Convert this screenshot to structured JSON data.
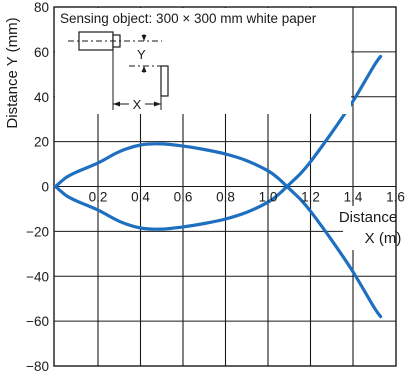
{
  "chart_data": {
    "type": "line",
    "ylabel": "Distance Y (mm)",
    "xlabel_line1": "Distance",
    "xlabel_line2": "X (m)",
    "xlim": [
      0,
      1.6
    ],
    "ylim": [
      -80,
      80
    ],
    "x_ticks": [
      0.2,
      0.4,
      0.6,
      0.8,
      1.0,
      1.2,
      1.4,
      1.6
    ],
    "x_tick_labels": [
      "0.2",
      "0.4",
      "0.6",
      "0.8",
      "1.0",
      "1.2",
      "1.4",
      "1.6"
    ],
    "y_ticks": [
      80,
      60,
      40,
      20,
      0,
      -20,
      -40,
      -60,
      -80
    ],
    "y_tick_labels": [
      "80",
      "60",
      "40",
      "20",
      "0",
      "−20",
      "−40",
      "−60",
      "−80"
    ],
    "grid": true,
    "line_color": "#1e6fbf",
    "series": [
      {
        "x": [
          0,
          0.05,
          0.1,
          0.2,
          0.3,
          0.4,
          0.5,
          0.6,
          0.7,
          0.8,
          0.9,
          1.0,
          1.05,
          1.1,
          1.15,
          1.2,
          1.3,
          1.4,
          1.5,
          1.53
        ],
        "y": [
          0,
          4,
          6.5,
          10.5,
          15.5,
          18.5,
          19,
          18,
          16.5,
          14.5,
          11.5,
          7,
          3.5,
          -1,
          -5.5,
          -11,
          -24,
          -38,
          -54,
          -58
        ]
      },
      {
        "x": [
          0,
          0.05,
          0.1,
          0.2,
          0.3,
          0.4,
          0.5,
          0.6,
          0.7,
          0.8,
          0.9,
          1.0,
          1.05,
          1.1,
          1.15,
          1.2,
          1.3,
          1.4,
          1.5,
          1.53
        ],
        "y": [
          0,
          -4,
          -6.5,
          -10.5,
          -15.5,
          -18.5,
          -19,
          -18,
          -16.5,
          -14.5,
          -11.5,
          -7,
          -3.5,
          1,
          5.5,
          11,
          24,
          38,
          54,
          58
        ]
      }
    ]
  },
  "inset": {
    "title": "Sensing object: 300 × 300 mm white paper",
    "y_label": "Y",
    "x_label": "X"
  }
}
